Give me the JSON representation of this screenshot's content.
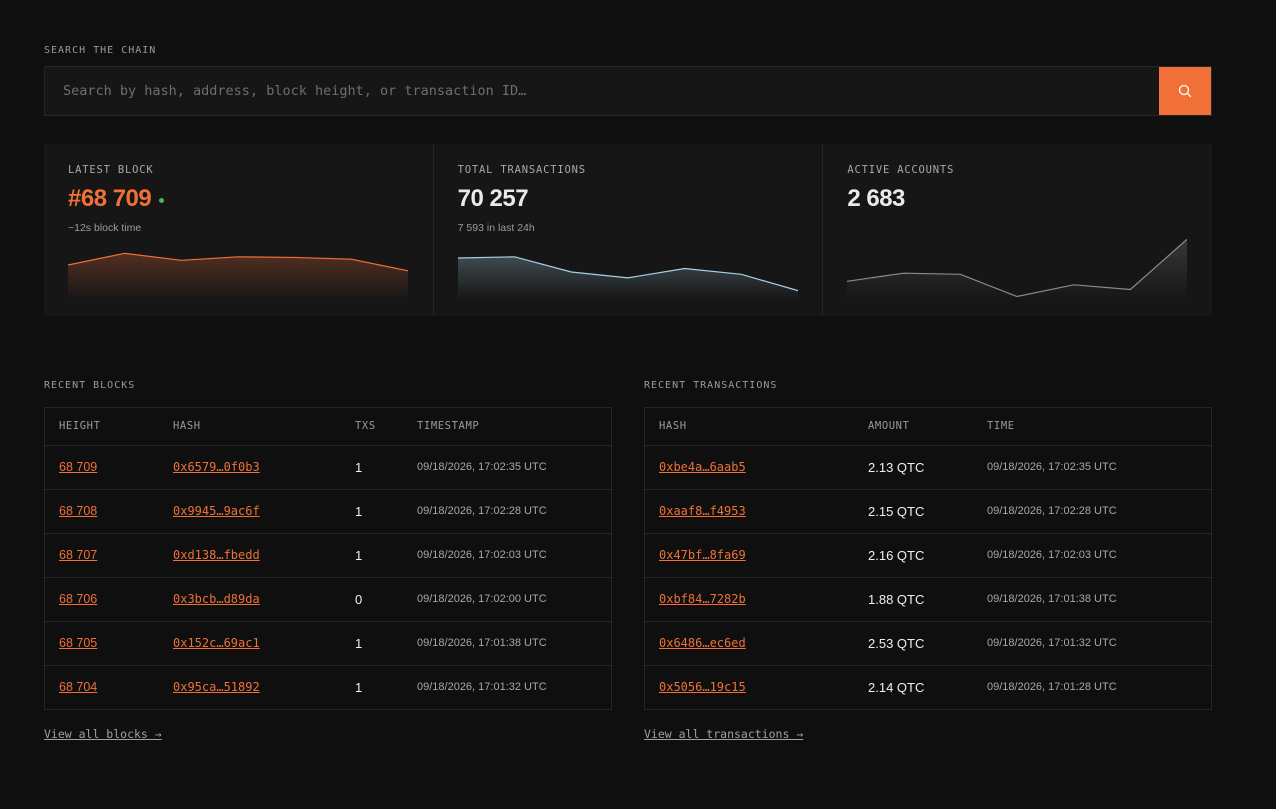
{
  "search": {
    "label": "SEARCH THE CHAIN",
    "placeholder": "Search by hash, address, block height, or transaction ID…"
  },
  "stats": [
    {
      "label": "LATEST BLOCK",
      "value": "#68 709",
      "sub": "~12s block time",
      "color": "#f07038",
      "spark": [
        30,
        40,
        34,
        37,
        36.5,
        35,
        25
      ]
    },
    {
      "label": "TOTAL TRANSACTIONS",
      "value": "70 257",
      "sub": "7 593 in last 24h",
      "color": "#a9d0e4",
      "spark": [
        36,
        37,
        24,
        19,
        27,
        22,
        8
      ]
    },
    {
      "label": "ACTIVE ACCOUNTS",
      "value": "2 683",
      "sub": "",
      "color": "#8a8a8a",
      "spark": [
        16,
        23,
        22,
        3,
        13,
        9,
        52
      ]
    }
  ],
  "blocks": {
    "label": "RECENT BLOCKS",
    "columns": [
      "HEIGHT",
      "HASH",
      "TXS",
      "TIMESTAMP"
    ],
    "rows": [
      {
        "height": "68 709",
        "hash": "0x6579…0f0b3",
        "txs": "1",
        "timestamp": "09/18/2026, 17:02:35 UTC"
      },
      {
        "height": "68 708",
        "hash": "0x9945…9ac6f",
        "txs": "1",
        "timestamp": "09/18/2026, 17:02:28 UTC"
      },
      {
        "height": "68 707",
        "hash": "0xd138…fbedd",
        "txs": "1",
        "timestamp": "09/18/2026, 17:02:03 UTC"
      },
      {
        "height": "68 706",
        "hash": "0x3bcb…d89da",
        "txs": "0",
        "timestamp": "09/18/2026, 17:02:00 UTC"
      },
      {
        "height": "68 705",
        "hash": "0x152c…69ac1",
        "txs": "1",
        "timestamp": "09/18/2026, 17:01:38 UTC"
      },
      {
        "height": "68 704",
        "hash": "0x95ca…51892",
        "txs": "1",
        "timestamp": "09/18/2026, 17:01:32 UTC"
      }
    ],
    "view_all": "View all blocks →"
  },
  "transactions": {
    "label": "RECENT TRANSACTIONS",
    "columns": [
      "HASH",
      "AMOUNT",
      "TIME"
    ],
    "rows": [
      {
        "hash": "0xbe4a…6aab5",
        "amount": "2.13 QTC",
        "time": "09/18/2026, 17:02:35 UTC"
      },
      {
        "hash": "0xaaf8…f4953",
        "amount": "2.15 QTC",
        "time": "09/18/2026, 17:02:28 UTC"
      },
      {
        "hash": "0x47bf…8fa69",
        "amount": "2.16 QTC",
        "time": "09/18/2026, 17:02:03 UTC"
      },
      {
        "hash": "0xbf84…7282b",
        "amount": "1.88 QTC",
        "time": "09/18/2026, 17:01:38 UTC"
      },
      {
        "hash": "0x6486…ec6ed",
        "amount": "2.53 QTC",
        "time": "09/18/2026, 17:01:32 UTC"
      },
      {
        "hash": "0x5056…19c15",
        "amount": "2.14 QTC",
        "time": "09/18/2026, 17:01:28 UTC"
      }
    ],
    "view_all": "View all transactions →"
  },
  "icons": {
    "search_button": "search-icon"
  }
}
